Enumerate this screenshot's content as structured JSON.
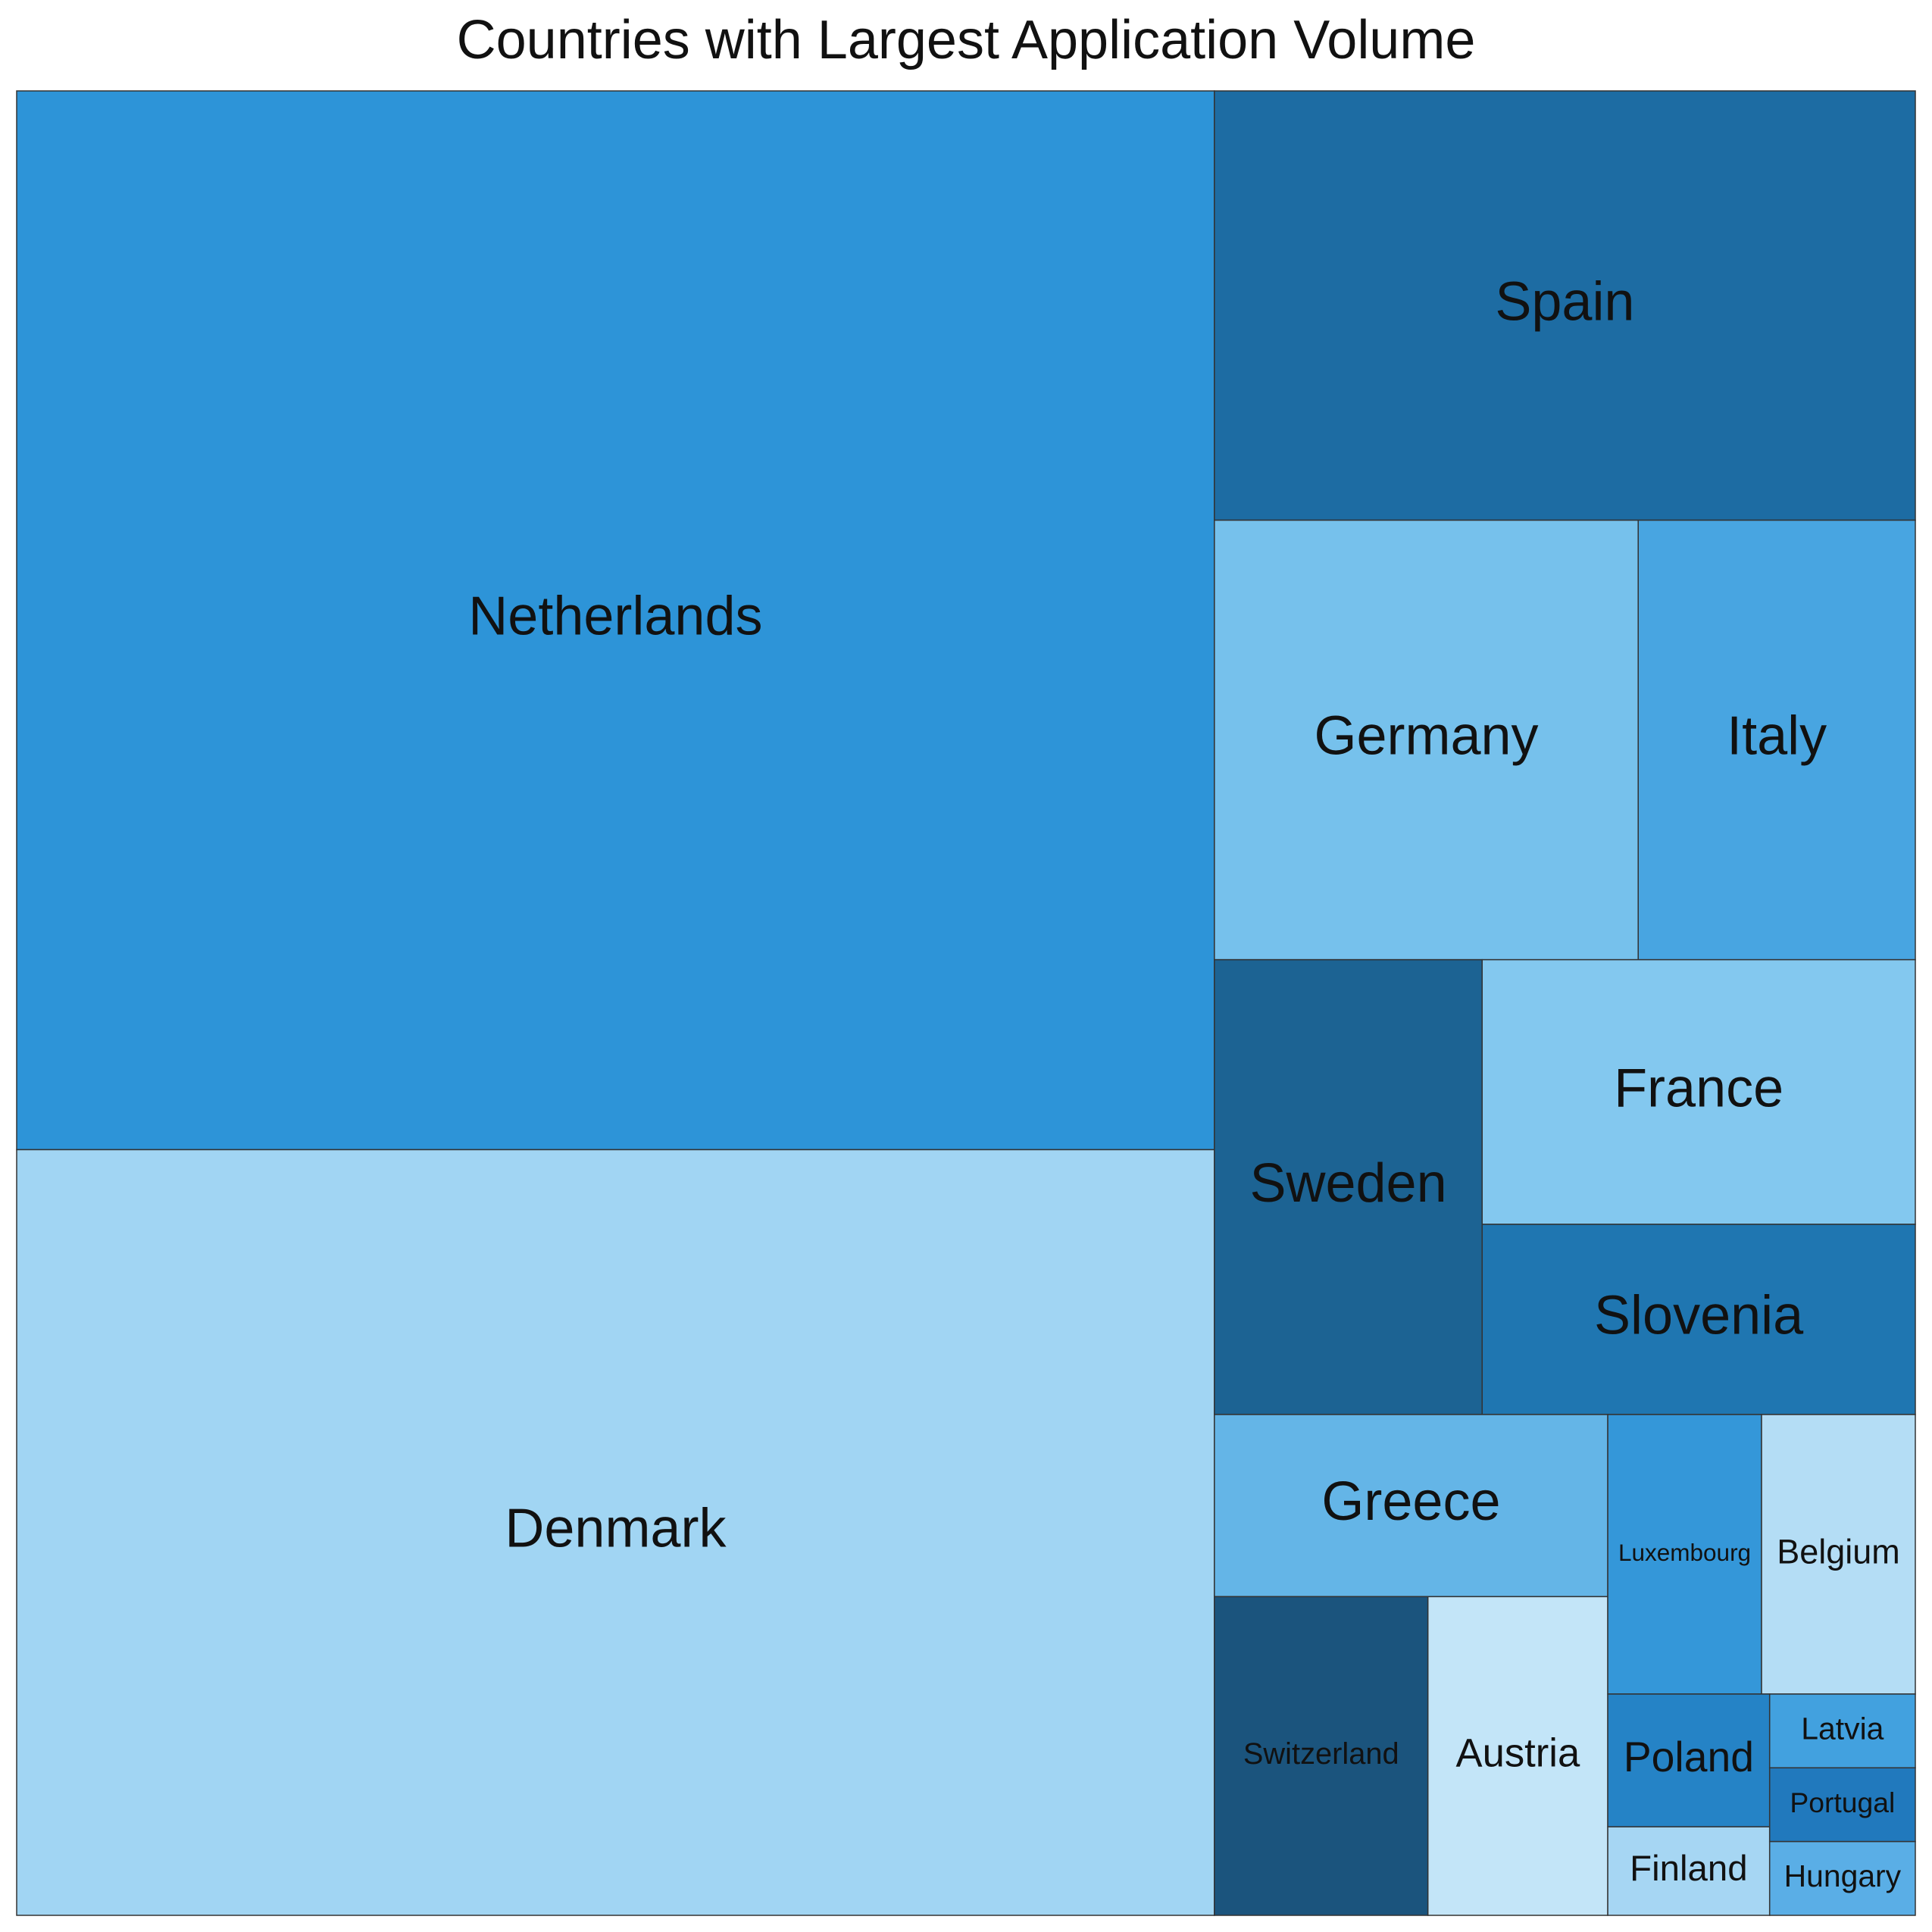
{
  "chart_data": {
    "type": "treemap",
    "title": "Countries with Largest Application Volume",
    "value_unit": "relative tile area (% of total)",
    "colors": {
      "Netherlands": "#2d94d8",
      "Denmark": "#a1d5f3",
      "Spain": "#1d6ca3",
      "Germany": "#76c1ec",
      "Italy": "#48a5e1",
      "Sweden": "#1c6393",
      "France": "#83c8ef",
      "Slovenia": "#1f76b1",
      "Greece": "#64b5e7",
      "Switzerland": "#1b547d",
      "Austria": "#c3e5f8",
      "Luxembourg": "#3497d9",
      "Belgium": "#b4ddf5",
      "Poland": "#2583c6",
      "Finland": "#a6d6f3",
      "Latvia": "#42a1df",
      "Portugal": "#2179bd",
      "Hungary": "#5aaee6",
      "border": "#333333"
    },
    "items": [
      {
        "label": "Netherlands",
        "value": 35.4
      },
      {
        "label": "Denmark",
        "value": 25.6
      },
      {
        "label": "Spain",
        "value": 8.4
      },
      {
        "label": "Germany",
        "value": 5.2
      },
      {
        "label": "Italy",
        "value": 3.4
      },
      {
        "label": "Sweden",
        "value": 3.4
      },
      {
        "label": "France",
        "value": 3.2
      },
      {
        "label": "Slovenia",
        "value": 2.3
      },
      {
        "label": "Greece",
        "value": 2.0
      },
      {
        "label": "Switzerland",
        "value": 1.9
      },
      {
        "label": "Austria",
        "value": 1.6
      },
      {
        "label": "Luxembourg",
        "value": 1.2
      },
      {
        "label": "Belgium",
        "value": 1.2
      },
      {
        "label": "Poland",
        "value": 0.6
      },
      {
        "label": "Finland",
        "value": 0.4
      },
      {
        "label": "Latvia",
        "value": 0.3
      },
      {
        "label": "Portugal",
        "value": 0.3
      },
      {
        "label": "Hungary",
        "value": 0.3
      }
    ]
  }
}
